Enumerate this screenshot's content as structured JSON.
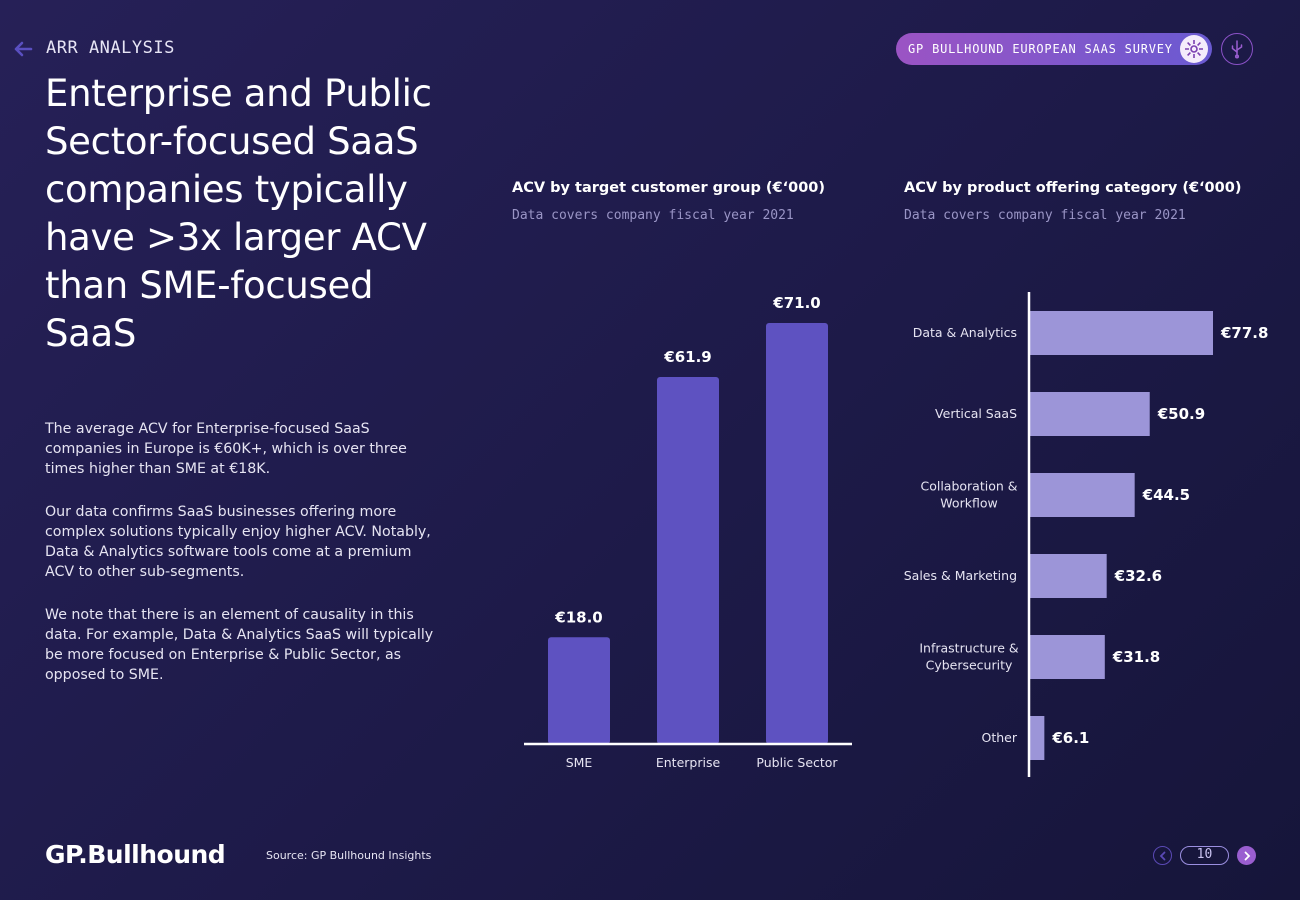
{
  "header": {
    "section_label": "ARR ANALYSIS",
    "survey_label": "GP BULLHOUND EUROPEAN SAAS SURVEY",
    "back_icon": "arrow-left-icon",
    "survey_logo_icon": "flower-badge-icon",
    "usb_icon": "usb-icon"
  },
  "headline": "Enterprise and Public Sector-focused SaaS companies typically have >3x larger ACV than SME-focused SaaS",
  "paragraphs": [
    "The average ACV for Enterprise-focused SaaS companies in Europe is €60K+, which is over three times higher than SME at €18K.",
    "Our data confirms SaaS businesses offering more complex solutions typically enjoy higher ACV. Notably, Data & Analytics software tools come at a premium ACV to other sub-segments.",
    "We note that there is an element of causality in this data. For example, Data & Analytics SaaS will typically be more focused on Enterprise & Public Sector, as opposed to SME."
  ],
  "colors": {
    "bar_vertical": "#5e52c1",
    "bar_horizontal": "#9c95d8",
    "accent": "#9a5ed0"
  },
  "chart_data": [
    {
      "type": "bar",
      "orientation": "vertical",
      "title": "ACV by target customer group (€‘000)",
      "subtitle": "Data covers company fiscal year 2021",
      "categories": [
        "SME",
        "Enterprise",
        "Public Sector"
      ],
      "values": [
        18.0,
        61.9,
        71.0
      ],
      "value_labels": [
        "€18.0",
        "€61.9",
        "€71.0"
      ],
      "ylim": [
        0,
        71.0
      ],
      "grid": false
    },
    {
      "type": "bar",
      "orientation": "horizontal",
      "title": "ACV by product offering category (€‘000)",
      "subtitle": "Data covers company fiscal year 2021",
      "categories": [
        "Data & Analytics",
        "Vertical SaaS",
        "Collaboration & Workflow",
        "Sales & Marketing",
        "Infrastructure & Cybersecurity",
        "Other"
      ],
      "category_lines": [
        [
          "Data & Analytics"
        ],
        [
          "Vertical SaaS"
        ],
        [
          "Collaboration &",
          "Workflow"
        ],
        [
          "Sales & Marketing"
        ],
        [
          "Infrastructure &",
          "Cybersecurity"
        ],
        [
          "Other"
        ]
      ],
      "values": [
        77.8,
        50.9,
        44.5,
        32.6,
        31.8,
        6.1
      ],
      "value_labels": [
        "€77.8",
        "€50.9",
        "€44.5",
        "€32.6",
        "€31.8",
        "€6.1"
      ],
      "xlim": [
        0,
        77.8
      ],
      "grid": false
    }
  ],
  "footer": {
    "brand": "GP.Bullhound",
    "source": "Source: GP Bullhound Insights",
    "page_number": "10",
    "prev_icon": "chevron-left-icon",
    "next_icon": "chevron-right-icon"
  }
}
